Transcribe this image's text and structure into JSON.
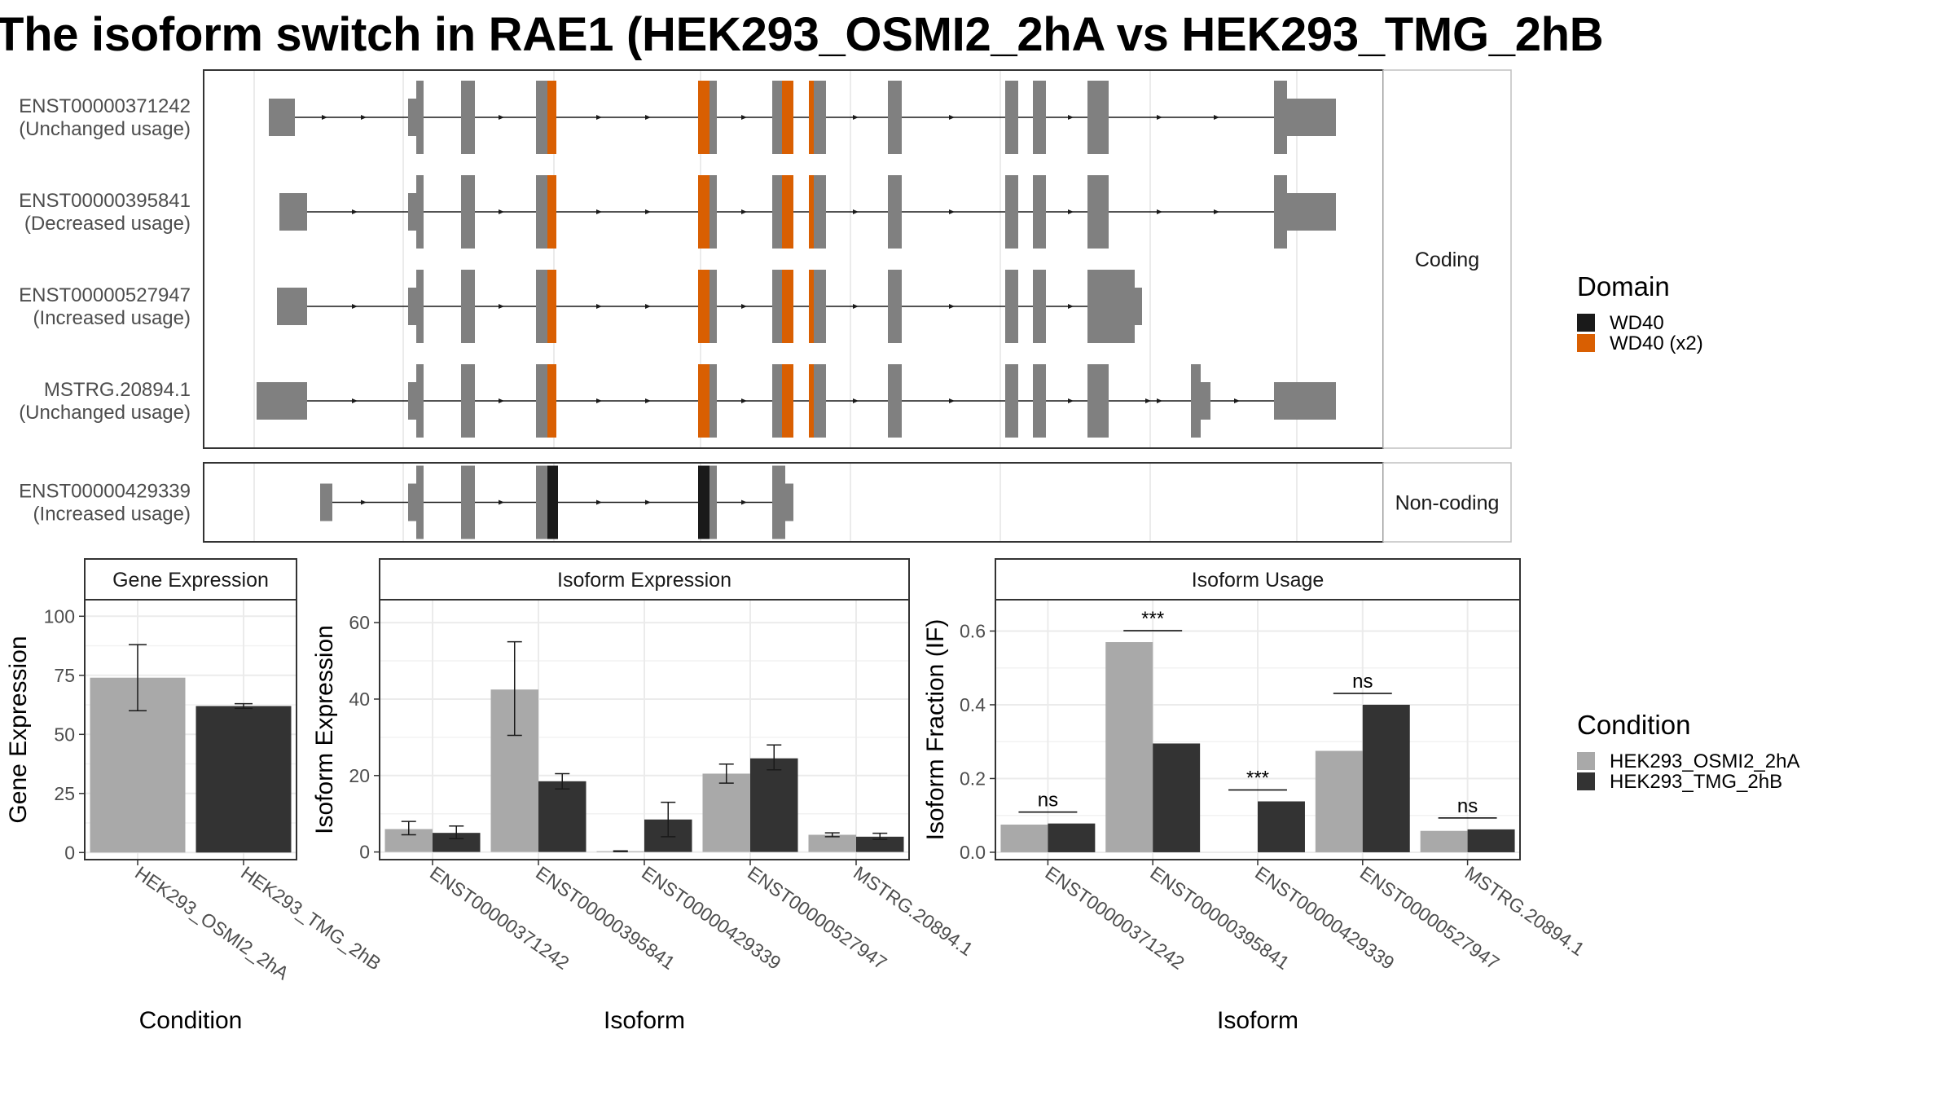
{
  "title": "The isoform switch in RAE1 (HEK293_OSMI2_2hA vs HEK293_TMG_2hB",
  "colors": {
    "exon": "#808080",
    "wd40": "#1a1a1a",
    "wd40_x2": "#d95f02",
    "cond_a": "#a9a9a9",
    "cond_b": "#333333",
    "panel_border": "#333333",
    "strip_fill": "#ffffff",
    "grid": "#ebebeb"
  },
  "structure": {
    "coding_label": "Coding",
    "noncoding_label": "Non-coding",
    "coding": [
      {
        "id": "ENST00000371242",
        "usage": "(Unchanged usage)",
        "variant": "full"
      },
      {
        "id": "ENST00000395841",
        "usage": "(Decreased usage)",
        "variant": "full2"
      },
      {
        "id": "ENST00000527947",
        "usage": "(Increased usage)",
        "variant": "short"
      },
      {
        "id": "MSTRG.20894.1",
        "usage": "(Unchanged usage)",
        "variant": "mstrg"
      }
    ],
    "noncoding": [
      {
        "id": "ENST00000429339",
        "usage": "(Increased usage)",
        "variant": "nc"
      }
    ]
  },
  "domain_legend": {
    "title": "Domain",
    "items": [
      {
        "label": "WD40",
        "color": "#1a1a1a"
      },
      {
        "label": "WD40 (x2)",
        "color": "#d95f02"
      }
    ]
  },
  "condition_legend": {
    "title": "Condition",
    "items": [
      {
        "label": "HEK293_OSMI2_2hA",
        "color": "#a9a9a9"
      },
      {
        "label": "HEK293_TMG_2hB",
        "color": "#333333"
      }
    ]
  },
  "chart_data": [
    {
      "type": "bar",
      "strip": "Gene Expression",
      "xlabel": "Condition",
      "ylabel": "Gene Expression",
      "categories": [
        "HEK293_OSMI2_2hA",
        "HEK293_TMG_2hB"
      ],
      "values": [
        74,
        62
      ],
      "errors": [
        [
          60,
          88
        ],
        [
          61,
          63
        ]
      ],
      "ylim": [
        -3,
        107
      ],
      "yticks": [
        0,
        25,
        50,
        75,
        100
      ]
    },
    {
      "type": "bar",
      "strip": "Isoform Expression",
      "xlabel": "Isoform",
      "ylabel": "Isoform Expression",
      "categories": [
        "ENST00000371242",
        "ENST00000395841",
        "ENST00000429339",
        "ENST00000527947",
        "MSTRG.20894.1"
      ],
      "series": [
        {
          "name": "HEK293_OSMI2_2hA",
          "values": [
            6,
            42.5,
            0.2,
            20.5,
            4.5
          ],
          "errors": [
            [
              4.5,
              8
            ],
            [
              30.5,
              55
            ],
            [
              0.1,
              0.3
            ],
            [
              18,
              23
            ],
            [
              4,
              5
            ]
          ]
        },
        {
          "name": "HEK293_TMG_2hB",
          "values": [
            5,
            18.5,
            8.5,
            24.5,
            4
          ],
          "errors": [
            [
              3.5,
              6.8
            ],
            [
              16.5,
              20.5
            ],
            [
              4,
              13
            ],
            [
              21.5,
              28
            ],
            [
              3.3,
              4.9
            ]
          ]
        }
      ],
      "ylim": [
        -2,
        66
      ],
      "yticks": [
        0,
        20,
        40,
        60
      ]
    },
    {
      "type": "bar",
      "strip": "Isoform Usage",
      "xlabel": "Isoform",
      "ylabel": "Isoform Fraction (IF)",
      "categories": [
        "ENST00000371242",
        "ENST00000395841",
        "ENST00000429339",
        "ENST00000527947",
        "MSTRG.20894.1"
      ],
      "series": [
        {
          "name": "HEK293_OSMI2_2hA",
          "values": [
            0.075,
            0.57,
            0.0,
            0.275,
            0.058
          ]
        },
        {
          "name": "HEK293_TMG_2hB",
          "values": [
            0.078,
            0.295,
            0.138,
            0.4,
            0.062
          ]
        }
      ],
      "significance": [
        "ns",
        "***",
        "***",
        "ns",
        "ns"
      ],
      "ylim": [
        -0.02,
        0.685
      ],
      "yticks": [
        0.0,
        0.2,
        0.4,
        0.6
      ],
      "ytick_labels": [
        "0.0",
        "0.2",
        "0.4",
        "0.6"
      ]
    }
  ]
}
